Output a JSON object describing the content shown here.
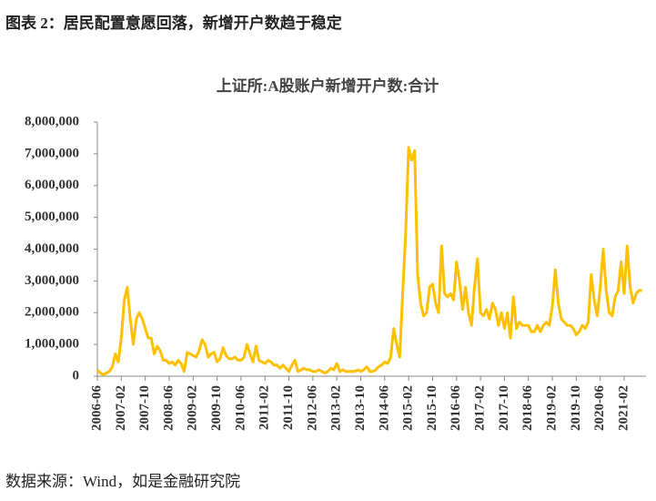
{
  "header": {
    "title": "图表 2：居民配置意愿回落，新增开户数趋于稳定"
  },
  "chart_data": {
    "type": "line",
    "title": "上证所:A股账户新增开户数:合计",
    "categories": [
      "2006-06",
      null,
      null,
      null,
      null,
      null,
      null,
      null,
      "2007-02",
      null,
      null,
      null,
      null,
      null,
      null,
      null,
      "2007-10",
      null,
      null,
      null,
      null,
      null,
      null,
      null,
      "2008-06",
      null,
      null,
      null,
      null,
      null,
      null,
      null,
      "2009-02",
      null,
      null,
      null,
      null,
      null,
      null,
      null,
      "2009-10",
      null,
      null,
      null,
      null,
      null,
      null,
      null,
      "2010-06",
      null,
      null,
      null,
      null,
      null,
      null,
      null,
      "2011-02",
      null,
      null,
      null,
      null,
      null,
      null,
      null,
      "2011-10",
      null,
      null,
      null,
      null,
      null,
      null,
      null,
      "2012-06",
      null,
      null,
      null,
      null,
      null,
      null,
      null,
      "2013-02",
      null,
      null,
      null,
      null,
      null,
      null,
      null,
      "2013-10",
      null,
      null,
      null,
      null,
      null,
      null,
      null,
      "2014-06",
      null,
      null,
      null,
      null,
      null,
      null,
      null,
      "2015-02",
      null,
      null,
      null,
      null,
      null,
      null,
      null,
      "2015-10",
      null,
      null,
      null,
      null,
      null,
      null,
      null,
      "2016-06",
      null,
      null,
      null,
      null,
      null,
      null,
      null,
      "2017-02",
      null,
      null,
      null,
      null,
      null,
      null,
      null,
      "2017-10",
      null,
      null,
      null,
      null,
      null,
      null,
      null,
      "2018-06",
      null,
      null,
      null,
      null,
      null,
      null,
      null,
      "2019-02",
      null,
      null,
      null,
      null,
      null,
      null,
      null,
      "2019-10",
      null,
      null,
      null,
      null,
      null,
      null,
      null,
      "2020-06",
      null,
      null,
      null,
      null,
      null,
      null,
      null,
      "2021-02",
      null,
      null,
      null,
      null,
      null,
      null
    ],
    "series": [
      {
        "name": "上证所:A股账户新增开户数:合计",
        "color": "#FFC000",
        "values": [
          200000,
          100000,
          50000,
          100000,
          150000,
          300000,
          700000,
          450000,
          1200000,
          2400000,
          2800000,
          1800000,
          1000000,
          1800000,
          2000000,
          1800000,
          1500000,
          1200000,
          1200000,
          700000,
          950000,
          800000,
          500000,
          500000,
          400000,
          450000,
          350000,
          500000,
          400000,
          150000,
          750000,
          700000,
          650000,
          600000,
          800000,
          1150000,
          1000000,
          600000,
          700000,
          750000,
          450000,
          550000,
          900000,
          650000,
          550000,
          550000,
          600000,
          500000,
          500000,
          600000,
          1000000,
          700000,
          450000,
          950000,
          500000,
          450000,
          400000,
          500000,
          450000,
          350000,
          350000,
          250000,
          350000,
          250000,
          150000,
          350000,
          500000,
          150000,
          200000,
          250000,
          200000,
          200000,
          150000,
          150000,
          200000,
          150000,
          100000,
          150000,
          250000,
          200000,
          400000,
          150000,
          200000,
          150000,
          150000,
          150000,
          150000,
          200000,
          150000,
          200000,
          300000,
          150000,
          150000,
          200000,
          300000,
          350000,
          450000,
          400000,
          600000,
          1500000,
          1000000,
          600000,
          2600000,
          4500000,
          7200000,
          6800000,
          7100000,
          3200000,
          2300000,
          1900000,
          2000000,
          2800000,
          2900000,
          2300000,
          2000000,
          4100000,
          2600000,
          2500000,
          2600000,
          2400000,
          3600000,
          3000000,
          2100000,
          2800000,
          2000000,
          1600000,
          2800000,
          3700000,
          2000000,
          1900000,
          2100000,
          1800000,
          2300000,
          2100000,
          1600000,
          2000000,
          1500000,
          2000000,
          1200000,
          2500000,
          1500000,
          1700000,
          1600000,
          1600000,
          1600000,
          1400000,
          1400000,
          1600000,
          1400000,
          1600000,
          1700000,
          1600000,
          2200000,
          3350000,
          2300000,
          1800000,
          1700000,
          1600000,
          1600000,
          1500000,
          1300000,
          1400000,
          1600000,
          1500000,
          1700000,
          3200000,
          2400000,
          1900000,
          2800000,
          4000000,
          2700000,
          2000000,
          1900000,
          2500000,
          2700000,
          3600000,
          2600000,
          4100000,
          2800000,
          2300000,
          2600000,
          2700000,
          2700000
        ]
      }
    ],
    "ylim": [
      0,
      8000000
    ],
    "yticks": [
      0,
      {
        "value": 1000000,
        "label": "1,000,000"
      },
      {
        "value": 2000000,
        "label": "2,000,000"
      },
      {
        "value": 3000000,
        "label": "3,000,000"
      },
      {
        "value": 4000000,
        "label": "4,000,000"
      },
      {
        "value": 5000000,
        "label": "5,000,000"
      },
      {
        "value": 6000000,
        "label": "6,000,000"
      },
      {
        "value": 7000000,
        "label": "7,000,000"
      },
      {
        "value": 8000000,
        "label": "8,000,000"
      }
    ],
    "grid": false
  },
  "footer": {
    "source": "数据来源：Wind，如是金融研究院"
  }
}
